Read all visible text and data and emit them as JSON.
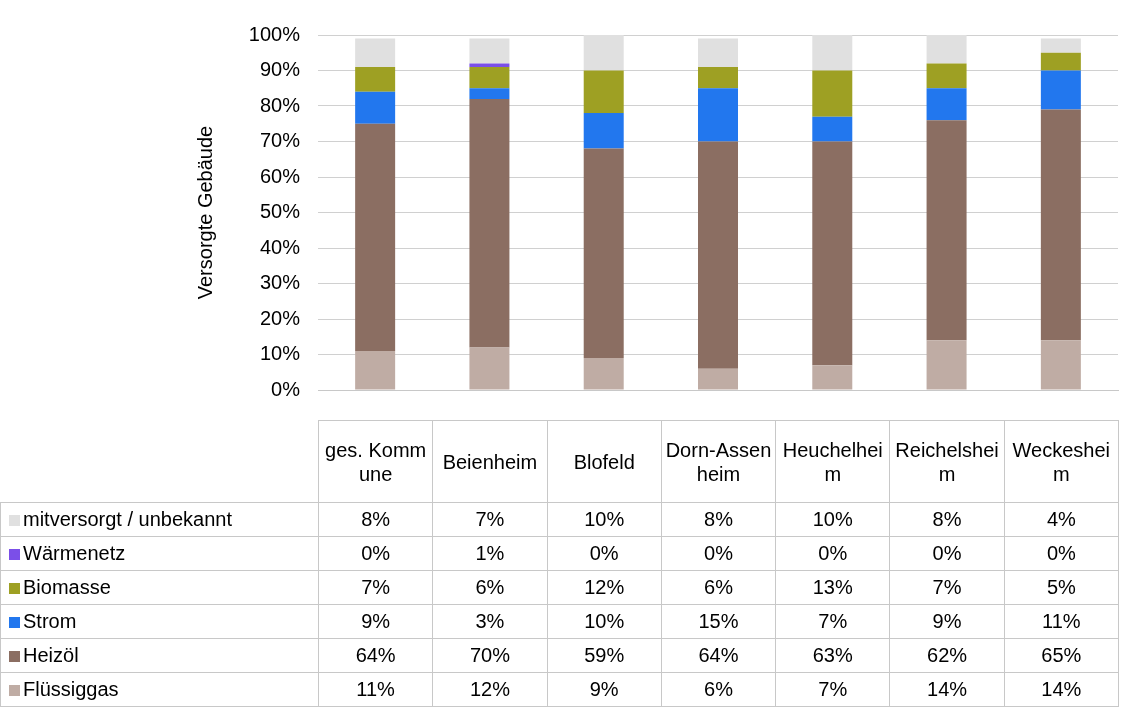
{
  "chart_data": {
    "type": "bar",
    "stacked": true,
    "ylabel": "Versorgte Gebäude",
    "categories": [
      "ges. Kommune",
      "Beienheim",
      "Blofeld",
      "Dorn-Assenheim",
      "Heuchelheim",
      "Reichelsheim",
      "Weckesheim"
    ],
    "series": [
      {
        "name": "Flüssiggas",
        "color": "#bfaca4",
        "values": [
          11,
          12,
          9,
          6,
          7,
          14,
          14
        ],
        "value_labels": [
          "11%",
          "12%",
          "9%",
          "6%",
          "7%",
          "14%",
          "14%"
        ]
      },
      {
        "name": "Heizöl",
        "color": "#8b6e62",
        "values": [
          64,
          70,
          59,
          64,
          63,
          62,
          65
        ],
        "value_labels": [
          "64%",
          "70%",
          "59%",
          "64%",
          "63%",
          "62%",
          "65%"
        ]
      },
      {
        "name": "Strom",
        "color": "#2277ee",
        "values": [
          9,
          3,
          10,
          15,
          7,
          9,
          11
        ],
        "value_labels": [
          "9%",
          "3%",
          "10%",
          "15%",
          "7%",
          "9%",
          "11%"
        ]
      },
      {
        "name": "Biomasse",
        "color": "#9ea023",
        "values": [
          7,
          6,
          12,
          6,
          13,
          7,
          5
        ],
        "value_labels": [
          "7%",
          "6%",
          "12%",
          "6%",
          "13%",
          "7%",
          "5%"
        ]
      },
      {
        "name": "Wärmenetz",
        "color": "#7b4fe8",
        "values": [
          0,
          1,
          0,
          0,
          0,
          0,
          0
        ],
        "value_labels": [
          "0%",
          "1%",
          "0%",
          "0%",
          "0%",
          "0%",
          "0%"
        ]
      },
      {
        "name": "mitversorgt / unbekannt",
        "color": "#e0e0e0",
        "values": [
          8,
          7,
          10,
          8,
          10,
          8,
          4
        ],
        "value_labels": [
          "8%",
          "7%",
          "10%",
          "8%",
          "10%",
          "8%",
          "4%"
        ]
      }
    ],
    "ylim": [
      0,
      100
    ],
    "yticks": [
      {
        "value": 0,
        "label": "0%"
      },
      {
        "value": 10,
        "label": "10%"
      },
      {
        "value": 20,
        "label": "20%"
      },
      {
        "value": 30,
        "label": "30%"
      },
      {
        "value": 40,
        "label": "40%"
      },
      {
        "value": 50,
        "label": "50%"
      },
      {
        "value": 60,
        "label": "60%"
      },
      {
        "value": 70,
        "label": "70%"
      },
      {
        "value": 80,
        "label": "80%"
      },
      {
        "value": 90,
        "label": "90%"
      },
      {
        "value": 100,
        "label": "100%"
      }
    ],
    "grid": "y",
    "legend": "bottom"
  }
}
